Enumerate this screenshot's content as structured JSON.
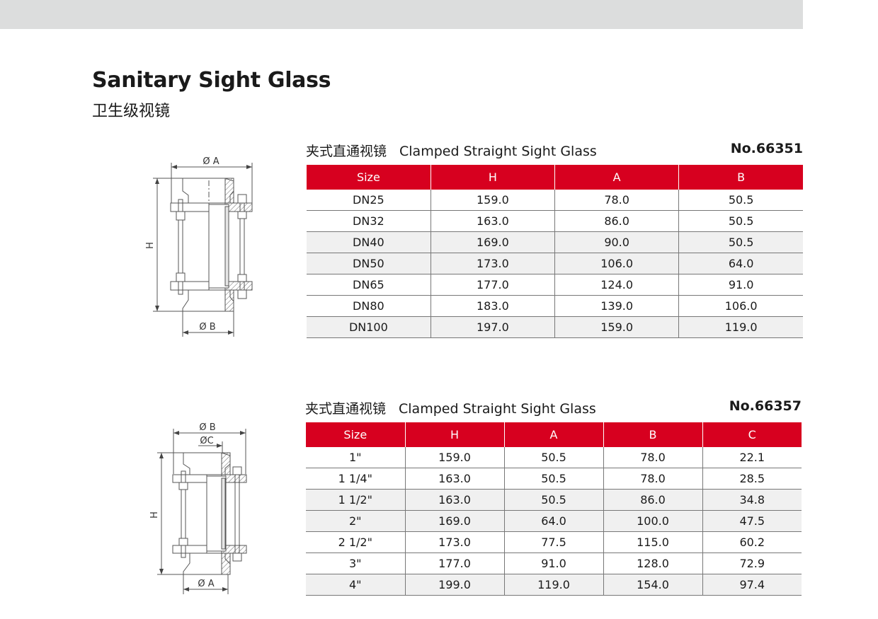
{
  "page": {
    "title": "Sanitary Sight Glass",
    "subtitle": "卫生级视镜",
    "accent_color": "#d7001f"
  },
  "products": [
    {
      "caption_cn": "夹式直通视镜",
      "caption_en": "Clamped Straight Sight Glass",
      "number": "No.66351",
      "drawing_labels": {
        "top": "Ø A",
        "height": "H",
        "bottom": "Ø B"
      },
      "columns": [
        "Size",
        "H",
        "A",
        "B"
      ],
      "rows": [
        [
          "DN25",
          "159.0",
          "78.0",
          "50.5"
        ],
        [
          "DN32",
          "163.0",
          "86.0",
          "50.5"
        ],
        [
          "DN40",
          "169.0",
          "90.0",
          "50.5"
        ],
        [
          "DN50",
          "173.0",
          "106.0",
          "64.0"
        ],
        [
          "DN65",
          "177.0",
          "124.0",
          "91.0"
        ],
        [
          "DN80",
          "183.0",
          "139.0",
          "106.0"
        ],
        [
          "DN100",
          "197.0",
          "159.0",
          "119.0"
        ]
      ]
    },
    {
      "caption_cn": "夹式直通视镜",
      "caption_en": "Clamped Straight Sight Glass",
      "number": "No.66357",
      "drawing_labels": {
        "top": "Ø B",
        "inner": "ØC",
        "height": "H",
        "bottom": "Ø A"
      },
      "columns": [
        "Size",
        "H",
        "A",
        "B",
        "C"
      ],
      "rows": [
        [
          "1\"",
          "159.0",
          "50.5",
          "78.0",
          "22.1"
        ],
        [
          "1 1/4\"",
          "163.0",
          "50.5",
          "78.0",
          "28.5"
        ],
        [
          "1 1/2\"",
          "163.0",
          "50.5",
          "86.0",
          "34.8"
        ],
        [
          "2\"",
          "169.0",
          "64.0",
          "100.0",
          "47.5"
        ],
        [
          "2 1/2\"",
          "173.0",
          "77.5",
          "115.0",
          "60.2"
        ],
        [
          "3\"",
          "177.0",
          "91.0",
          "128.0",
          "72.9"
        ],
        [
          "4\"",
          "199.0",
          "119.0",
          "154.0",
          "97.4"
        ]
      ]
    }
  ]
}
